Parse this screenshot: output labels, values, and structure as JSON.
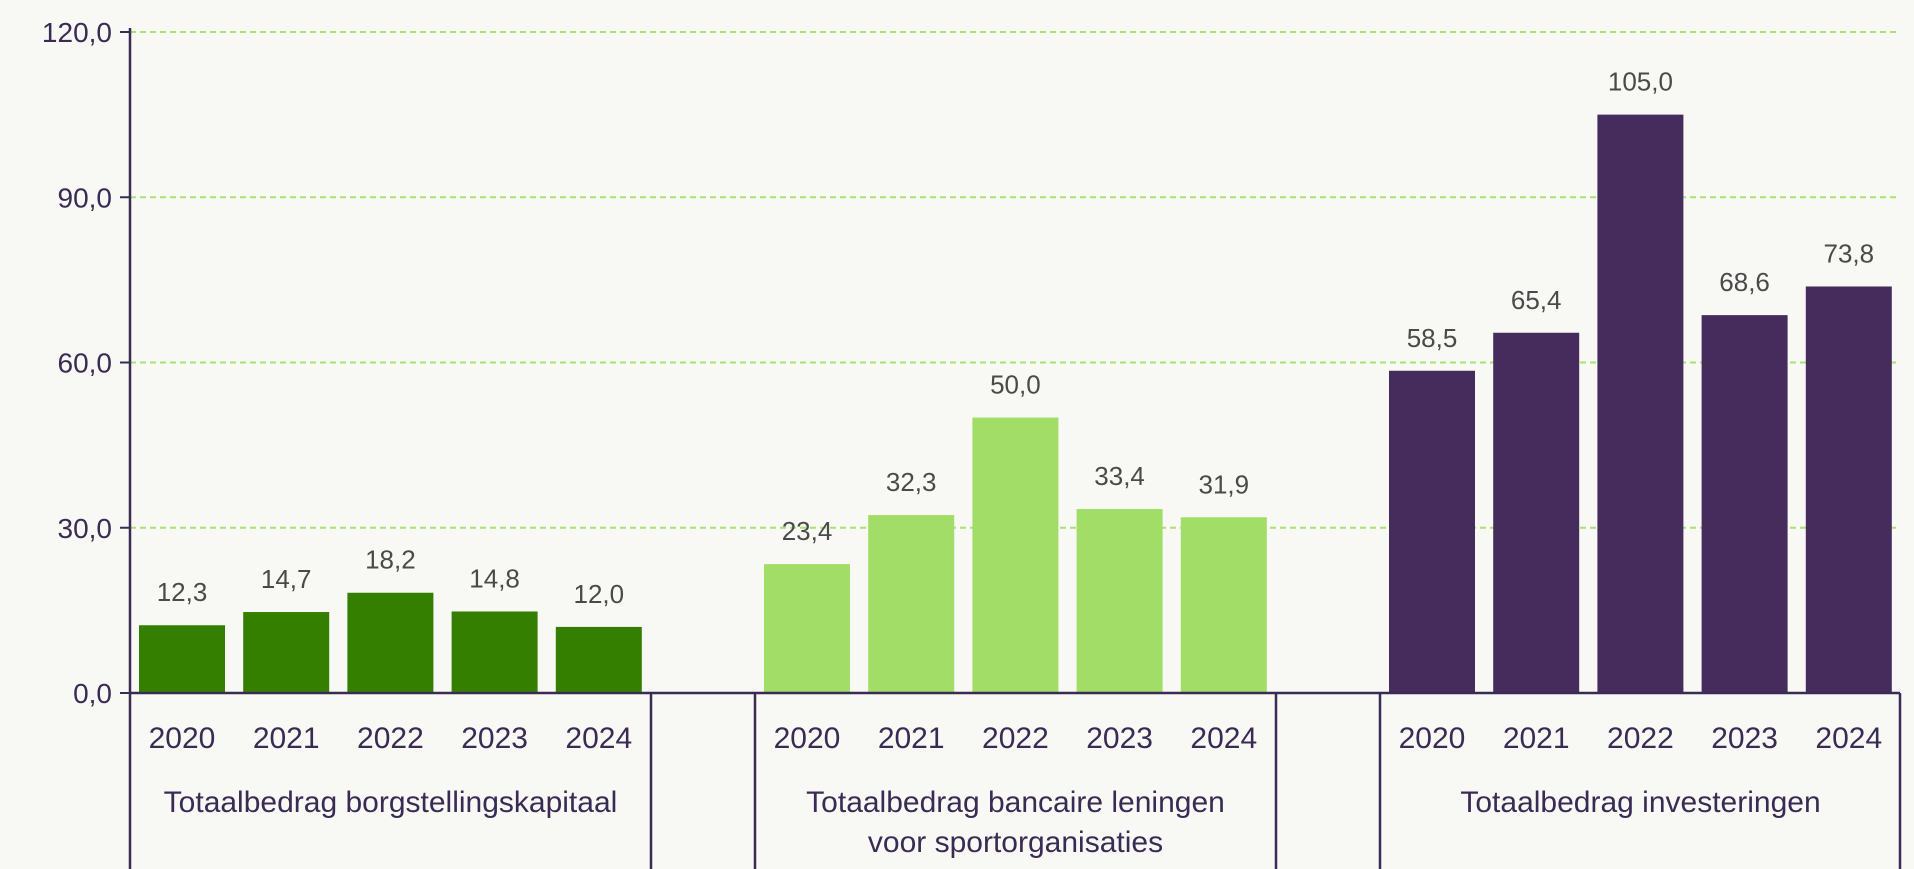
{
  "chart_data": {
    "type": "bar",
    "ylim": [
      0,
      120
    ],
    "yticks": [
      "0,0",
      "30,0",
      "60,0",
      "90,0",
      "120,0"
    ],
    "ytick_values": [
      0,
      30,
      60,
      90,
      120
    ],
    "grid": true,
    "categories": [
      "2020",
      "2021",
      "2022",
      "2023",
      "2024"
    ],
    "groups": [
      {
        "label_lines": [
          "Totaalbedrag borgstellingskapitaal"
        ],
        "color": "#357f00",
        "values": [
          12.3,
          14.7,
          18.2,
          14.8,
          12.0
        ],
        "value_labels": [
          "12,3",
          "14,7",
          "18,2",
          "14,8",
          "12,0"
        ]
      },
      {
        "label_lines": [
          "Totaalbedrag bancaire leningen",
          "voor sportorganisaties"
        ],
        "color": "#a1dd67",
        "values": [
          23.4,
          32.3,
          50.0,
          33.4,
          31.9
        ],
        "value_labels": [
          "23,4",
          "32,3",
          "50,0",
          "33,4",
          "31,9"
        ]
      },
      {
        "label_lines": [
          "Totaalbedrag investeringen"
        ],
        "color": "#452c5c",
        "values": [
          58.5,
          65.4,
          105.0,
          68.6,
          73.8
        ],
        "value_labels": [
          "58,5",
          "65,4",
          "105,0",
          "68,6",
          "73,8"
        ]
      }
    ],
    "colors": {
      "axis": "#3a2b54",
      "grid": "#a8e36f"
    }
  }
}
